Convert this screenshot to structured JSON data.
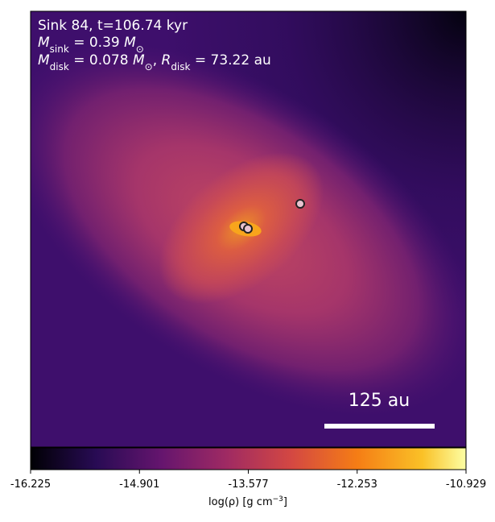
{
  "annotations": {
    "line1": "Sink 84, t=106.74 kyr",
    "line2": [
      "M",
      "sink",
      " = 0.39 ",
      "M",
      "⊙"
    ],
    "line3": [
      "M",
      "disk",
      " = 0.078 ",
      "M",
      "⊙",
      ", ",
      "R",
      "disk",
      " = 73.22 au"
    ]
  },
  "scale_bar": {
    "label": "125 au"
  },
  "colorbar": {
    "label": [
      "log(ρ) [g cm",
      "−3",
      "]"
    ],
    "lim": [
      -16.225,
      -10.929
    ],
    "ticks": [
      -16.225,
      -14.901,
      -13.577,
      -12.253,
      -10.929
    ]
  }
}
